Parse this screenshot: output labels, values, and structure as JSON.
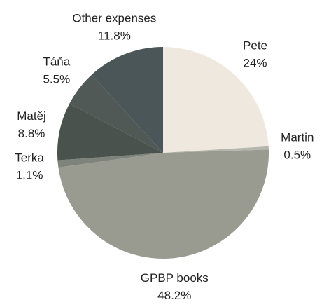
{
  "chart_data": {
    "type": "pie",
    "categories": [
      "Pete",
      "Martin",
      "GPBP books",
      "Terka",
      "Matěj",
      "Táňa",
      "Other expenses"
    ],
    "values": [
      24,
      0.5,
      48.2,
      1.1,
      8.8,
      5.5,
      11.8
    ],
    "value_labels": [
      "24%",
      "0.5%",
      "48.2%",
      "1.1%",
      "8.8%",
      "5.5%",
      "11.8%"
    ],
    "colors": [
      "#efe8df",
      "#b5b6ad",
      "#999b91",
      "#7e847c",
      "#4a524d",
      "#505956",
      "#4b5659"
    ]
  }
}
